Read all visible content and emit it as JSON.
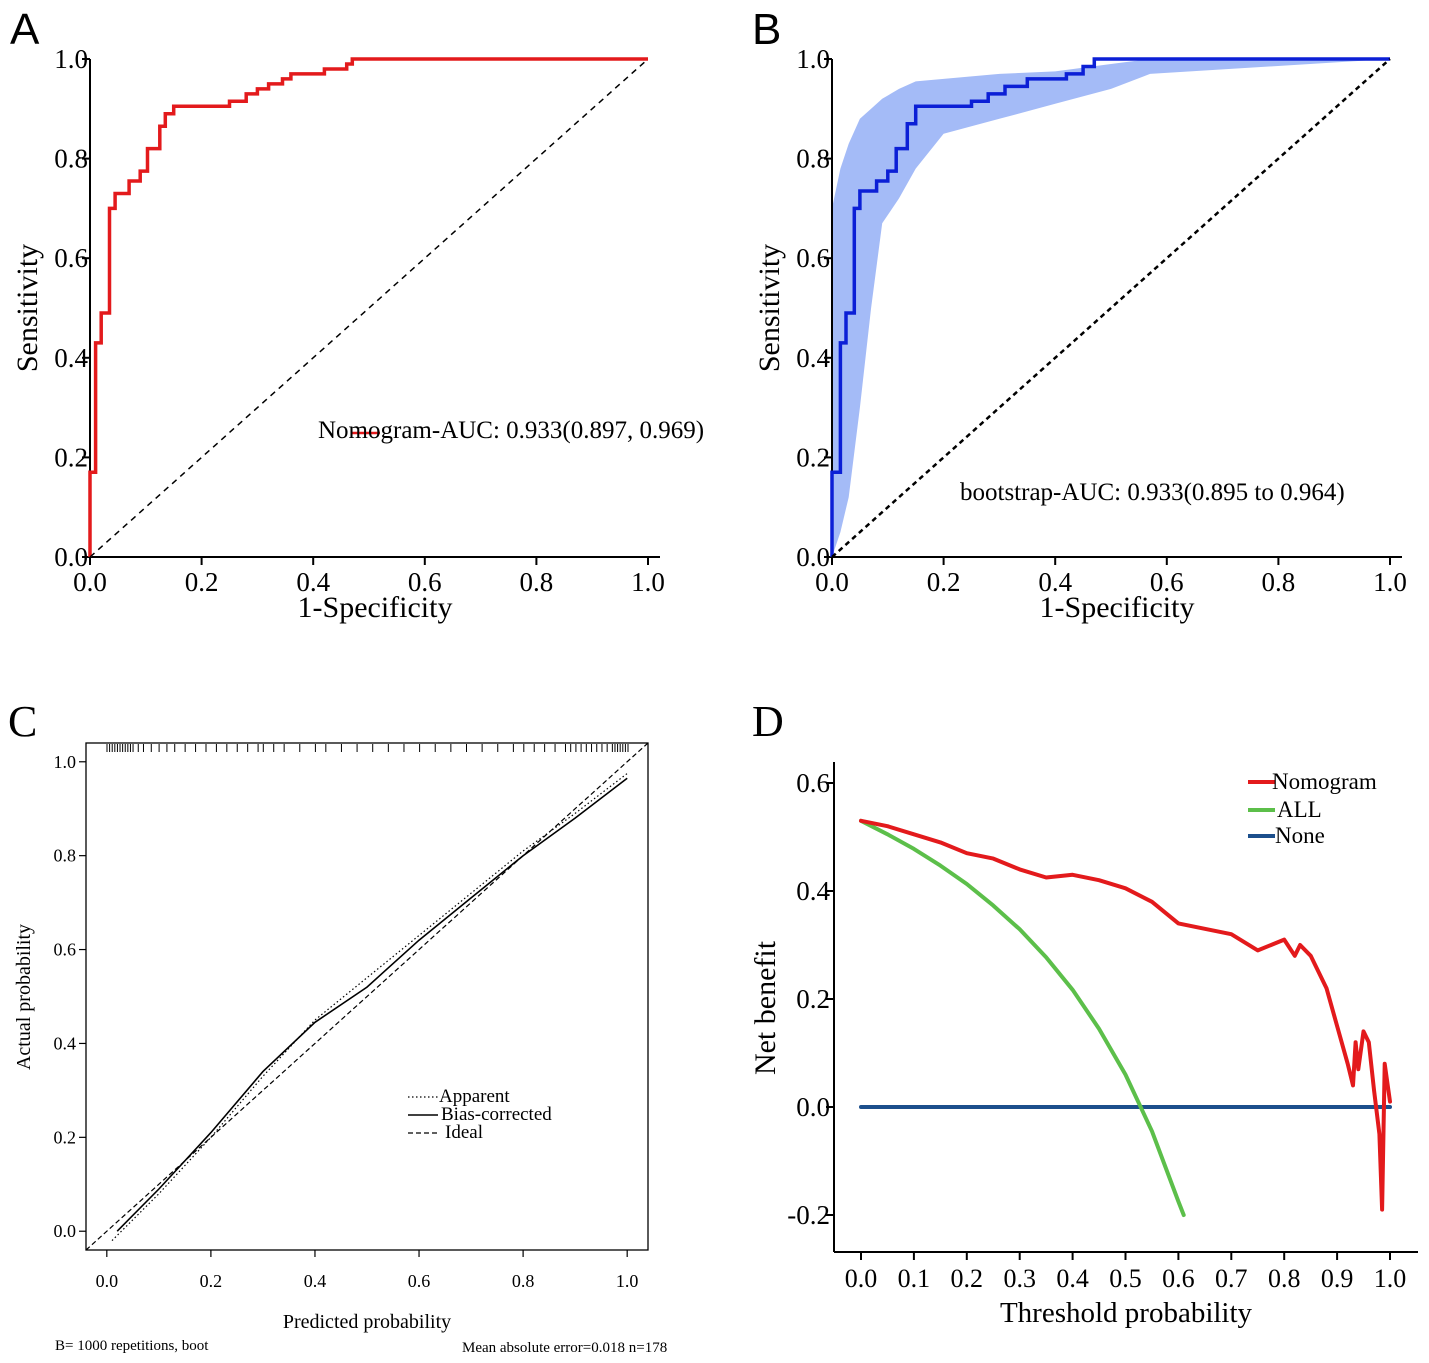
{
  "figure": {
    "panels": [
      "A",
      "B",
      "C",
      "D"
    ]
  },
  "chart_data": [
    {
      "panel": "A",
      "type": "line",
      "xlabel": "1-Specificity",
      "ylabel": "Sensitivity",
      "xlim": [
        0,
        1
      ],
      "ylim": [
        0,
        1
      ],
      "xticks": [
        "0.0",
        "0.2",
        "0.4",
        "0.6",
        "0.8",
        "1.0"
      ],
      "yticks": [
        "0.0",
        "0.2",
        "0.4",
        "0.6",
        "0.8",
        "1.0"
      ],
      "annotation": "Nomogram-AUC: 0.933(0.897, 0.969)",
      "series": [
        {
          "name": "Nomogram ROC",
          "color": "#e31a1c",
          "points": [
            [
              0,
              0
            ],
            [
              0,
              0.17
            ],
            [
              0.01,
              0.17
            ],
            [
              0.01,
              0.43
            ],
            [
              0.02,
              0.43
            ],
            [
              0.02,
              0.49
            ],
            [
              0.035,
              0.49
            ],
            [
              0.035,
              0.7
            ],
            [
              0.045,
              0.7
            ],
            [
              0.045,
              0.73
            ],
            [
              0.07,
              0.73
            ],
            [
              0.07,
              0.755
            ],
            [
              0.09,
              0.755
            ],
            [
              0.09,
              0.775
            ],
            [
              0.103,
              0.775
            ],
            [
              0.103,
              0.82
            ],
            [
              0.125,
              0.82
            ],
            [
              0.125,
              0.865
            ],
            [
              0.135,
              0.865
            ],
            [
              0.135,
              0.89
            ],
            [
              0.15,
              0.89
            ],
            [
              0.15,
              0.905
            ],
            [
              0.25,
              0.905
            ],
            [
              0.25,
              0.915
            ],
            [
              0.28,
              0.915
            ],
            [
              0.28,
              0.93
            ],
            [
              0.3,
              0.93
            ],
            [
              0.3,
              0.94
            ],
            [
              0.32,
              0.94
            ],
            [
              0.32,
              0.95
            ],
            [
              0.345,
              0.95
            ],
            [
              0.345,
              0.96
            ],
            [
              0.36,
              0.96
            ],
            [
              0.36,
              0.97
            ],
            [
              0.42,
              0.97
            ],
            [
              0.42,
              0.98
            ],
            [
              0.46,
              0.98
            ],
            [
              0.46,
              0.99
            ],
            [
              0.47,
              0.99
            ],
            [
              0.47,
              1
            ],
            [
              1,
              1
            ]
          ]
        },
        {
          "name": "Reference",
          "color": "#000000",
          "dash": "dashed",
          "points": [
            [
              0,
              0
            ],
            [
              1,
              1
            ]
          ]
        }
      ]
    },
    {
      "panel": "B",
      "type": "line",
      "xlabel": "1-Specificity",
      "ylabel": "Sensitivity",
      "xlim": [
        0,
        1
      ],
      "ylim": [
        0,
        1
      ],
      "xticks": [
        "0.0",
        "0.2",
        "0.4",
        "0.6",
        "0.8",
        "1.0"
      ],
      "yticks": [
        "0.0",
        "0.2",
        "0.4",
        "0.6",
        "0.8",
        "1.0"
      ],
      "annotation": "bootstrap-AUC: 0.933(0.895 to 0.964)",
      "ci_band": {
        "color": "#a4bbf7",
        "x": [
          0,
          0.015,
          0.03,
          0.05,
          0.07,
          0.09,
          0.12,
          0.15,
          0.2,
          0.3,
          0.4,
          0.5,
          0.57,
          1
        ],
        "lower": [
          0,
          0.05,
          0.12,
          0.3,
          0.5,
          0.67,
          0.72,
          0.78,
          0.85,
          0.88,
          0.91,
          0.94,
          0.97,
          1
        ],
        "upper": [
          0.7,
          0.78,
          0.83,
          0.88,
          0.9,
          0.92,
          0.94,
          0.955,
          0.96,
          0.97,
          0.975,
          0.99,
          1,
          1
        ]
      },
      "series": [
        {
          "name": "bootstrap ROC",
          "color": "#0b1fd6",
          "points": [
            [
              0,
              0
            ],
            [
              0,
              0.17
            ],
            [
              0.015,
              0.17
            ],
            [
              0.015,
              0.43
            ],
            [
              0.025,
              0.43
            ],
            [
              0.025,
              0.49
            ],
            [
              0.04,
              0.49
            ],
            [
              0.04,
              0.7
            ],
            [
              0.05,
              0.7
            ],
            [
              0.05,
              0.735
            ],
            [
              0.08,
              0.735
            ],
            [
              0.08,
              0.755
            ],
            [
              0.1,
              0.755
            ],
            [
              0.1,
              0.775
            ],
            [
              0.115,
              0.775
            ],
            [
              0.115,
              0.82
            ],
            [
              0.135,
              0.82
            ],
            [
              0.135,
              0.87
            ],
            [
              0.15,
              0.87
            ],
            [
              0.15,
              0.905
            ],
            [
              0.25,
              0.905
            ],
            [
              0.25,
              0.915
            ],
            [
              0.28,
              0.915
            ],
            [
              0.28,
              0.93
            ],
            [
              0.31,
              0.93
            ],
            [
              0.31,
              0.945
            ],
            [
              0.35,
              0.945
            ],
            [
              0.35,
              0.96
            ],
            [
              0.42,
              0.96
            ],
            [
              0.42,
              0.97
            ],
            [
              0.45,
              0.97
            ],
            [
              0.45,
              0.985
            ],
            [
              0.47,
              0.985
            ],
            [
              0.47,
              1
            ],
            [
              1,
              1
            ]
          ]
        },
        {
          "name": "Reference",
          "color": "#000000",
          "dash": "dashed",
          "points": [
            [
              0,
              0
            ],
            [
              1,
              1
            ]
          ]
        }
      ]
    },
    {
      "panel": "C",
      "type": "line",
      "xlabel": "Predicted probability",
      "ylabel": "Actual probability",
      "xlim": [
        -0.04,
        1.04
      ],
      "ylim": [
        -0.04,
        1.04
      ],
      "xticks": [
        "0.0",
        "0.2",
        "0.4",
        "0.6",
        "0.8",
        "1.0"
      ],
      "yticks": [
        "0.0",
        "0.2",
        "0.4",
        "0.6",
        "0.8",
        "1.0"
      ],
      "legend": [
        {
          "label": "Apparent",
          "style": "dotted"
        },
        {
          "label": "Bias-corrected",
          "style": "solid"
        },
        {
          "label": "Ideal",
          "style": "dashed"
        }
      ],
      "footer_left": "B= 1000 repetitions, boot",
      "footer_right": "Mean absolute error=0.018 n=178",
      "rug": [
        0.0,
        0.005,
        0.01,
        0.015,
        0.02,
        0.025,
        0.03,
        0.035,
        0.04,
        0.045,
        0.05,
        0.06,
        0.07,
        0.085,
        0.1,
        0.115,
        0.13,
        0.15,
        0.17,
        0.19,
        0.21,
        0.23,
        0.25,
        0.27,
        0.29,
        0.3,
        0.32,
        0.34,
        0.37,
        0.4,
        0.42,
        0.45,
        0.48,
        0.51,
        0.54,
        0.57,
        0.6,
        0.63,
        0.66,
        0.69,
        0.72,
        0.75,
        0.78,
        0.8,
        0.82,
        0.84,
        0.86,
        0.88,
        0.89,
        0.9,
        0.91,
        0.92,
        0.93,
        0.94,
        0.95,
        0.96,
        0.97,
        0.975,
        0.98,
        0.985,
        0.99,
        0.995,
        1.0
      ],
      "series": [
        {
          "name": "Apparent",
          "dash": "dotted",
          "points": [
            [
              0.01,
              -0.02
            ],
            [
              0.1,
              0.08
            ],
            [
              0.2,
              0.2
            ],
            [
              0.3,
              0.33
            ],
            [
              0.4,
              0.45
            ],
            [
              0.5,
              0.54
            ],
            [
              0.6,
              0.63
            ],
            [
              0.7,
              0.72
            ],
            [
              0.8,
              0.81
            ],
            [
              0.9,
              0.89
            ],
            [
              1.0,
              0.975
            ]
          ]
        },
        {
          "name": "Bias-corrected",
          "dash": "solid",
          "points": [
            [
              0.02,
              0.0
            ],
            [
              0.1,
              0.09
            ],
            [
              0.2,
              0.21
            ],
            [
              0.3,
              0.34
            ],
            [
              0.4,
              0.445
            ],
            [
              0.5,
              0.52
            ],
            [
              0.6,
              0.62
            ],
            [
              0.7,
              0.71
            ],
            [
              0.8,
              0.8
            ],
            [
              0.9,
              0.88
            ],
            [
              1.0,
              0.965
            ]
          ]
        },
        {
          "name": "Ideal",
          "dash": "dashed",
          "points": [
            [
              -0.04,
              -0.04
            ],
            [
              1.04,
              1.04
            ]
          ]
        }
      ]
    },
    {
      "panel": "D",
      "type": "line",
      "xlabel": "Threshold probability",
      "ylabel": "Net benefit",
      "xlim": [
        -0.05,
        1.05
      ],
      "ylim": [
        -0.25,
        0.65
      ],
      "xticks": [
        "0.0",
        "0.1",
        "0.2",
        "0.3",
        "0.4",
        "0.5",
        "0.6",
        "0.7",
        "0.8",
        "0.9",
        "1.0"
      ],
      "yticks": [
        "-0.2",
        "0.0",
        "0.2",
        "0.4",
        "0.6"
      ],
      "legend": [
        {
          "label": "Nomogram",
          "color": "#e31a1c"
        },
        {
          "label": "ALL",
          "color": "#5cbf4a"
        },
        {
          "label": "None",
          "color": "#1c4f8c"
        }
      ],
      "series": [
        {
          "name": "Nomogram",
          "color": "#e31a1c",
          "points": [
            [
              0,
              0.53
            ],
            [
              0.05,
              0.52
            ],
            [
              0.1,
              0.505
            ],
            [
              0.15,
              0.49
            ],
            [
              0.2,
              0.47
            ],
            [
              0.25,
              0.46
            ],
            [
              0.3,
              0.44
            ],
            [
              0.35,
              0.425
            ],
            [
              0.4,
              0.43
            ],
            [
              0.45,
              0.42
            ],
            [
              0.5,
              0.405
            ],
            [
              0.55,
              0.38
            ],
            [
              0.6,
              0.34
            ],
            [
              0.65,
              0.33
            ],
            [
              0.7,
              0.32
            ],
            [
              0.75,
              0.29
            ],
            [
              0.8,
              0.31
            ],
            [
              0.82,
              0.28
            ],
            [
              0.83,
              0.3
            ],
            [
              0.85,
              0.28
            ],
            [
              0.88,
              0.22
            ],
            [
              0.9,
              0.15
            ],
            [
              0.92,
              0.08
            ],
            [
              0.93,
              0.04
            ],
            [
              0.935,
              0.12
            ],
            [
              0.94,
              0.07
            ],
            [
              0.95,
              0.14
            ],
            [
              0.96,
              0.12
            ],
            [
              0.97,
              0.03
            ],
            [
              0.98,
              -0.05
            ],
            [
              0.985,
              -0.19
            ],
            [
              0.99,
              0.08
            ],
            [
              1.0,
              0.01
            ]
          ]
        },
        {
          "name": "ALL",
          "color": "#5cbf4a",
          "points": [
            [
              0,
              0.53
            ],
            [
              0.05,
              0.505
            ],
            [
              0.1,
              0.478
            ],
            [
              0.15,
              0.447
            ],
            [
              0.2,
              0.413
            ],
            [
              0.25,
              0.373
            ],
            [
              0.3,
              0.329
            ],
            [
              0.35,
              0.277
            ],
            [
              0.4,
              0.217
            ],
            [
              0.45,
              0.145
            ],
            [
              0.5,
              0.06
            ],
            [
              0.55,
              -0.045
            ],
            [
              0.6,
              -0.175
            ],
            [
              0.61,
              -0.2
            ]
          ]
        },
        {
          "name": "None",
          "color": "#1c4f8c",
          "points": [
            [
              0,
              0
            ],
            [
              1,
              0
            ]
          ]
        }
      ]
    }
  ]
}
